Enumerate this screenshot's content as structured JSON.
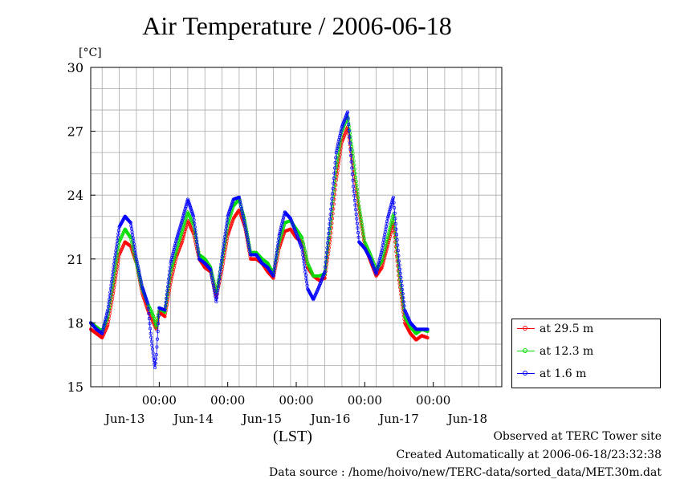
{
  "title": "Air Temperature / 2006-06-18",
  "unit": "[°C]",
  "xlabel": "(LST)",
  "footer": {
    "line1": "Observed at TERC Tower site",
    "line2": "Created Automatically at 2006-06-18/23:32:38",
    "line3": "Data source : /home/hoivo/new/TERC-data/sorted_data/MET.30m.dat"
  },
  "colors": {
    "s1": "#ff0000",
    "s2": "#00dd00",
    "s3": "#0000ff",
    "grid": "#aaaaaa"
  },
  "chart_data": {
    "type": "line",
    "title": "Air Temperature / 2006-06-18",
    "ylabel": "[°C]",
    "xlabel": "(LST)",
    "ylim": [
      15,
      30
    ],
    "yticks": [
      15,
      18,
      21,
      24,
      27,
      30
    ],
    "xlim": [
      -22,
      122
    ],
    "grid": true,
    "legend_position": "right",
    "midnight_tick_label": "00:00",
    "midnight_ticks": [
      2,
      26,
      50,
      74,
      98
    ],
    "day_labels": [
      {
        "label": "Jun-13",
        "x": -10
      },
      {
        "label": "Jun-14",
        "x": 14
      },
      {
        "label": "Jun-15",
        "x": 38
      },
      {
        "label": "Jun-16",
        "x": 62
      },
      {
        "label": "Jun-17",
        "x": 86
      },
      {
        "label": "Jun-18",
        "x": 110
      }
    ],
    "series": [
      {
        "name": "at 29.5 m",
        "color": "#ff0000",
        "points": [
          [
            -22,
            17.7
          ],
          [
            -20,
            17.5
          ],
          [
            -18,
            17.3
          ],
          [
            -16,
            17.9
          ],
          [
            -14,
            19.5
          ],
          [
            -12,
            21.2
          ],
          [
            -10,
            21.8
          ],
          [
            -8,
            21.6
          ],
          [
            -6,
            20.8
          ],
          [
            -4,
            19.4
          ],
          [
            -2,
            18.6
          ],
          [
            0,
            18.0
          ],
          [
            1,
            17.7
          ],
          [
            2,
            18.5
          ],
          [
            4,
            18.3
          ],
          [
            6,
            19.9
          ],
          [
            8,
            21.1
          ],
          [
            10,
            21.8
          ],
          [
            12,
            22.8
          ],
          [
            14,
            22.2
          ],
          [
            16,
            21.0
          ],
          [
            18,
            20.6
          ],
          [
            20,
            20.4
          ],
          [
            22,
            19.2
          ],
          [
            24,
            20.5
          ],
          [
            26,
            22.1
          ],
          [
            28,
            22.9
          ],
          [
            30,
            23.3
          ],
          [
            32,
            22.5
          ],
          [
            34,
            21.0
          ],
          [
            36,
            21.0
          ],
          [
            38,
            20.8
          ],
          [
            40,
            20.4
          ],
          [
            42,
            20.1
          ],
          [
            44,
            21.5
          ],
          [
            46,
            22.3
          ],
          [
            48,
            22.4
          ],
          [
            50,
            22.0
          ],
          [
            52,
            21.8
          ],
          [
            54,
            20.6
          ],
          [
            56,
            20.2
          ],
          [
            58,
            20.0
          ],
          [
            60,
            20.1
          ],
          [
            62,
            22.0
          ],
          [
            64,
            24.7
          ],
          [
            66,
            26.5
          ],
          [
            68,
            27.2
          ],
          [
            70,
            25.2
          ],
          [
            72,
            23.3
          ],
          [
            74,
            21.6
          ],
          [
            76,
            20.9
          ],
          [
            78,
            20.2
          ],
          [
            80,
            20.6
          ],
          [
            82,
            21.6
          ],
          [
            84,
            22.7
          ],
          [
            86,
            20.0
          ],
          [
            88,
            18.0
          ],
          [
            90,
            17.5
          ],
          [
            92,
            17.2
          ],
          [
            94,
            17.4
          ],
          [
            96,
            17.3
          ]
        ]
      },
      {
        "name": "at 12.3 m",
        "color": "#00dd00",
        "points": [
          [
            -22,
            18.0
          ],
          [
            -20,
            17.8
          ],
          [
            -18,
            17.6
          ],
          [
            -16,
            18.3
          ],
          [
            -14,
            20.0
          ],
          [
            -12,
            21.8
          ],
          [
            -10,
            22.4
          ],
          [
            -8,
            22.0
          ],
          [
            -6,
            20.8
          ],
          [
            -4,
            19.6
          ],
          [
            -2,
            18.9
          ],
          [
            0,
            18.3
          ],
          [
            1,
            17.8
          ],
          [
            2,
            18.7
          ],
          [
            4,
            18.5
          ],
          [
            6,
            20.4
          ],
          [
            8,
            21.4
          ],
          [
            10,
            22.3
          ],
          [
            12,
            23.2
          ],
          [
            14,
            22.6
          ],
          [
            16,
            21.2
          ],
          [
            18,
            21.0
          ],
          [
            20,
            20.6
          ],
          [
            22,
            19.4
          ],
          [
            24,
            20.9
          ],
          [
            26,
            22.6
          ],
          [
            28,
            23.5
          ],
          [
            30,
            23.8
          ],
          [
            32,
            22.8
          ],
          [
            34,
            21.3
          ],
          [
            36,
            21.3
          ],
          [
            38,
            21.0
          ],
          [
            40,
            20.8
          ],
          [
            42,
            20.3
          ],
          [
            44,
            21.8
          ],
          [
            46,
            22.7
          ],
          [
            48,
            22.8
          ],
          [
            50,
            22.4
          ],
          [
            52,
            22.0
          ],
          [
            54,
            20.8
          ],
          [
            56,
            20.2
          ],
          [
            58,
            20.2
          ],
          [
            60,
            20.3
          ],
          [
            62,
            22.6
          ],
          [
            64,
            25.3
          ],
          [
            66,
            27.0
          ],
          [
            68,
            27.7
          ],
          [
            70,
            25.8
          ],
          [
            72,
            23.5
          ],
          [
            74,
            21.8
          ],
          [
            76,
            21.2
          ],
          [
            78,
            20.5
          ],
          [
            80,
            20.9
          ],
          [
            82,
            22.0
          ],
          [
            84,
            23.1
          ],
          [
            86,
            20.4
          ],
          [
            88,
            18.3
          ],
          [
            90,
            17.8
          ],
          [
            92,
            17.5
          ],
          [
            94,
            17.7
          ],
          [
            96,
            17.6
          ]
        ]
      },
      {
        "name": "at 1.6 m",
        "color": "#0000ff",
        "points": [
          [
            -22,
            18.0
          ],
          [
            -20,
            17.7
          ],
          [
            -18,
            17.5
          ],
          [
            -16,
            18.6
          ],
          [
            -14,
            20.6
          ],
          [
            -12,
            22.5
          ],
          [
            -10,
            23.0
          ],
          [
            -8,
            22.7
          ],
          [
            -6,
            21.0
          ],
          [
            -4,
            19.7
          ],
          [
            -2,
            18.9
          ],
          [
            -1,
            17.5
          ],
          [
            0,
            16.4
          ],
          [
            0.5,
            15.9
          ],
          [
            1,
            16.5
          ],
          [
            2,
            18.7
          ],
          [
            4,
            18.6
          ],
          [
            6,
            20.8
          ],
          [
            8,
            21.9
          ],
          [
            10,
            22.8
          ],
          [
            12,
            23.8
          ],
          [
            14,
            23.0
          ],
          [
            16,
            21.0
          ],
          [
            18,
            20.8
          ],
          [
            20,
            20.5
          ],
          [
            22,
            19.0
          ],
          [
            24,
            21.1
          ],
          [
            26,
            23.0
          ],
          [
            28,
            23.8
          ],
          [
            30,
            23.9
          ],
          [
            32,
            22.6
          ],
          [
            34,
            21.2
          ],
          [
            36,
            21.2
          ],
          [
            38,
            20.8
          ],
          [
            40,
            20.6
          ],
          [
            42,
            20.2
          ],
          [
            44,
            22.1
          ],
          [
            46,
            23.2
          ],
          [
            48,
            22.9
          ],
          [
            50,
            22.2
          ],
          [
            52,
            21.5
          ],
          [
            54,
            19.6
          ],
          [
            56,
            19.1
          ],
          [
            58,
            19.7
          ],
          [
            60,
            20.4
          ],
          [
            62,
            23.1
          ],
          [
            64,
            26.0
          ],
          [
            66,
            27.2
          ],
          [
            68,
            27.9
          ],
          [
            70,
            24.4
          ],
          [
            72,
            21.8
          ],
          [
            74,
            21.5
          ],
          [
            76,
            21.0
          ],
          [
            78,
            20.3
          ],
          [
            80,
            21.4
          ],
          [
            82,
            22.9
          ],
          [
            84,
            23.9
          ],
          [
            86,
            20.9
          ],
          [
            88,
            18.6
          ],
          [
            90,
            18.0
          ],
          [
            92,
            17.7
          ],
          [
            94,
            17.7
          ],
          [
            96,
            17.7
          ]
        ]
      }
    ]
  }
}
